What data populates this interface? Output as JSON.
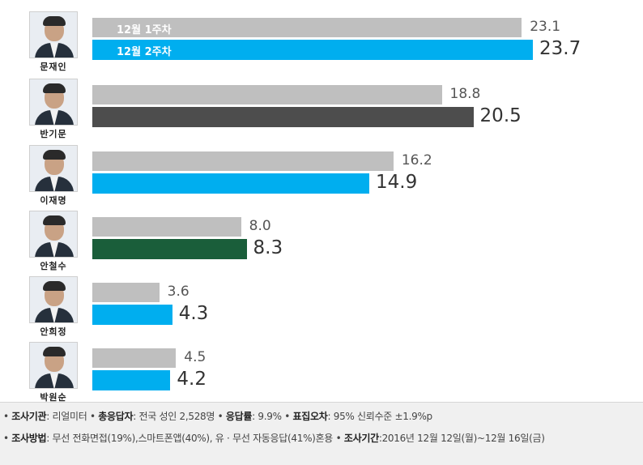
{
  "chart_data": {
    "type": "bar",
    "orientation": "horizontal",
    "categories": [
      "문재인",
      "반기문",
      "이재명",
      "안철수",
      "안희정",
      "박원순"
    ],
    "series": [
      {
        "name": "12월 1주차",
        "color": "#bfbfbf",
        "values": [
          23.1,
          18.8,
          16.2,
          8.0,
          3.6,
          4.5
        ]
      },
      {
        "name": "12월 2주차",
        "colors": [
          "#00aeef",
          "#4d4d4d",
          "#00aeef",
          "#1a5e3a",
          "#00aeef",
          "#00aeef"
        ],
        "values": [
          23.7,
          20.5,
          14.9,
          8.3,
          4.3,
          4.2
        ]
      }
    ],
    "value_labels_prev": [
      "23.1",
      "18.8",
      "16.2",
      "8.0",
      "3.6",
      "4.5"
    ],
    "value_labels_curr": [
      "23.7",
      "20.5",
      "14.9",
      "8.3",
      "4.3",
      "4.2"
    ],
    "xlim": [
      0,
      25
    ],
    "grid": false,
    "legend": "inside-first-bars"
  },
  "footer": {
    "line1": [
      {
        "label": "조사기관",
        "text": ": 리얼미터 "
      },
      {
        "label": "총응답자",
        "text": ": 전국 성인 2,528명 "
      },
      {
        "label": "응답률",
        "text": ": 9.9% "
      },
      {
        "label": "표집오차",
        "text": ": 95% 신뢰수준 ±1.9%p"
      }
    ],
    "line2": [
      {
        "label": "조사방법",
        "text": ": 무선 전화면접(19%),스마트폰앱(40%), 유 · 무선 자동응답(41%)혼용 "
      },
      {
        "label": "조사기간",
        "text": ":2016년 12월 12일(월)~12월 16일(금)"
      }
    ]
  }
}
